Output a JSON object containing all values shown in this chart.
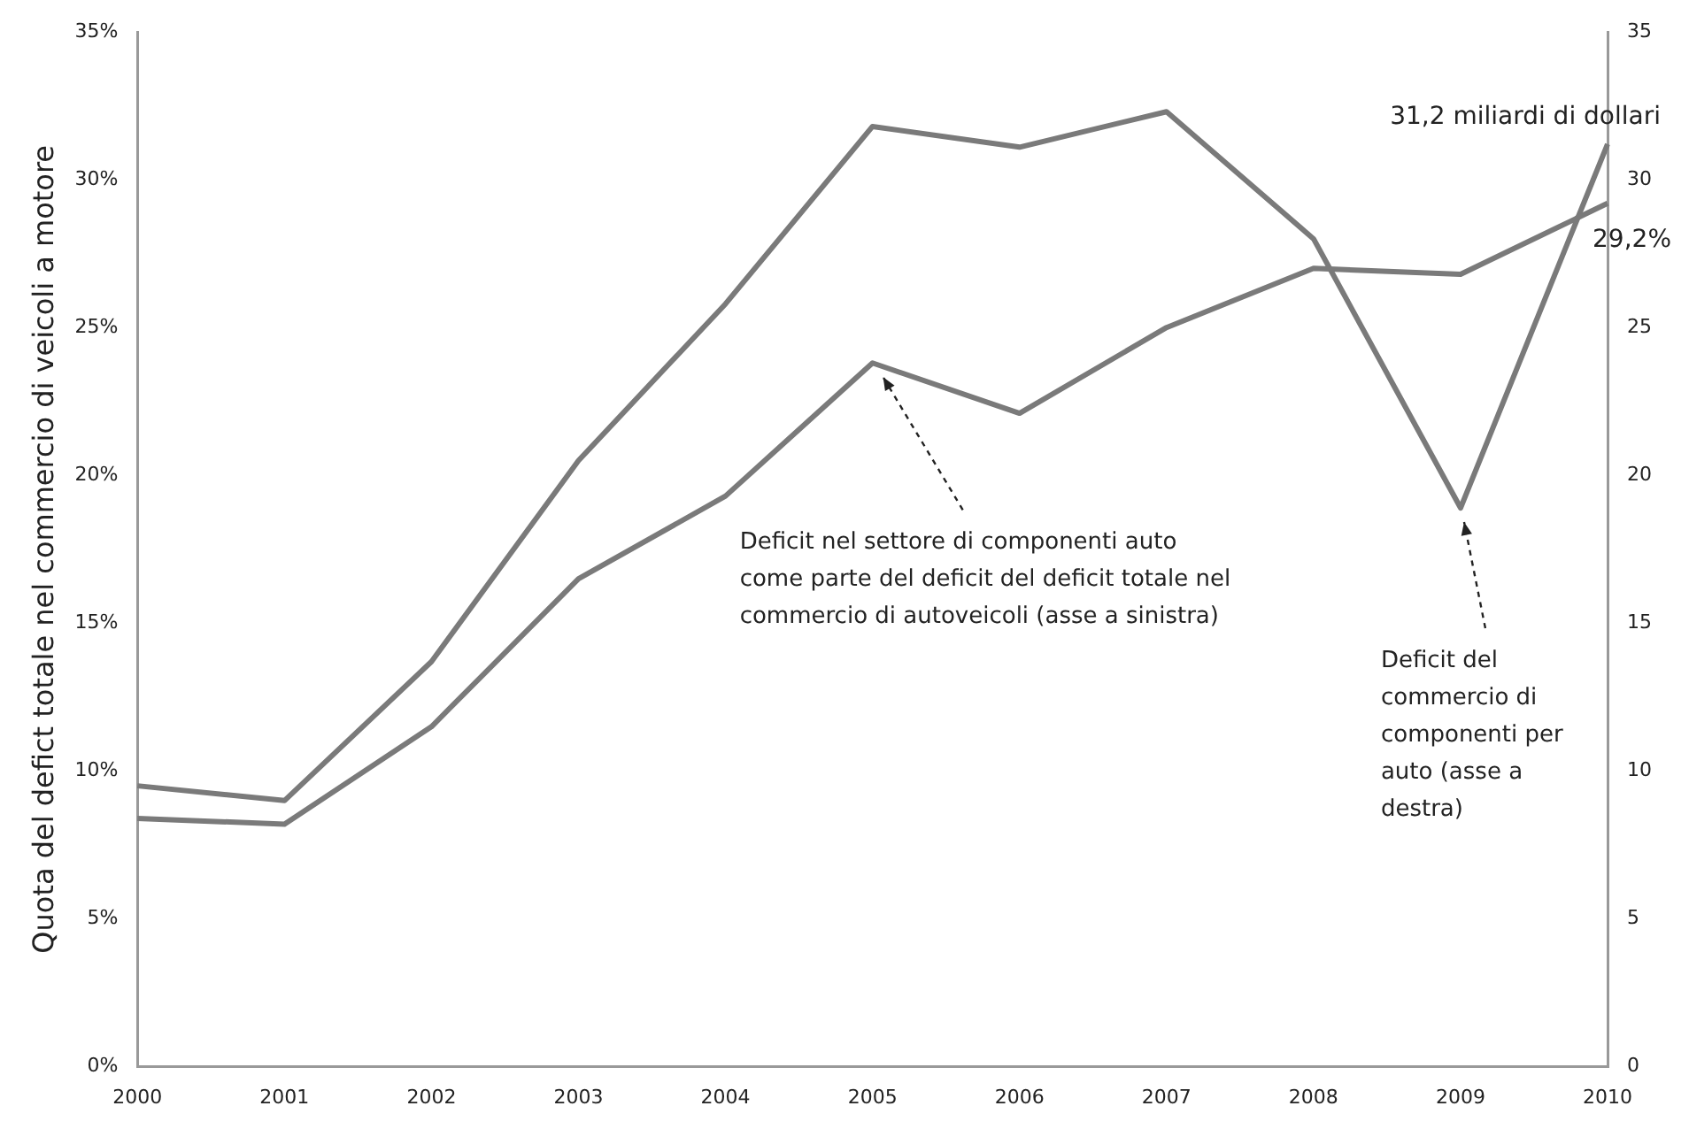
{
  "chart_data": {
    "type": "line",
    "ylabel": "Quota del defict totale nel commercio di veicoli a motore",
    "categories": [
      "2000",
      "2001",
      "2002",
      "2003",
      "2004",
      "2005",
      "2006",
      "2007",
      "2008",
      "2009",
      "2010"
    ],
    "series": [
      {
        "color": "#7a7a7a",
        "values": [
          8.4,
          8.2,
          11.5,
          16.5,
          19.3,
          23.8,
          22.1,
          25.0,
          27.0,
          26.8,
          29.2
        ],
        "value_labels": [
          null,
          null,
          null,
          null,
          null,
          null,
          null,
          null,
          null,
          null,
          "29,2%"
        ]
      },
      {
        "color": "#7a7a7a",
        "axis": "y2",
        "values": [
          9.5,
          9.0,
          13.7,
          20.5,
          25.8,
          31.8,
          31.1,
          32.3,
          28.0,
          18.9,
          31.2
        ],
        "value_labels": [
          null,
          null,
          null,
          null,
          null,
          null,
          null,
          null,
          null,
          null,
          "31,2 miliardi di dollari"
        ]
      }
    ],
    "ylim": [
      0,
      35
    ],
    "yticks": [
      {
        "value": 0,
        "label": "0%"
      },
      {
        "value": 5,
        "label": "5%"
      },
      {
        "value": 10,
        "label": "10%"
      },
      {
        "value": 15,
        "label": "15%"
      },
      {
        "value": 20,
        "label": "20%"
      },
      {
        "value": 25,
        "label": "25%"
      },
      {
        "value": 30,
        "label": "30%"
      },
      {
        "value": 35,
        "label": "35%"
      }
    ],
    "y2lim": [
      0,
      35
    ],
    "y2ticks": [
      0,
      5,
      10,
      15,
      20,
      25,
      30,
      35
    ],
    "grid": false,
    "legend": false,
    "line_style": "solid",
    "marker": "none",
    "annotations": [
      "Deficit nel settore di componenti auto come parte del deficit del deficit totale nel commercio di autoveicoli (asse a sinistra)",
      {
        "text": "Deficit del commercio di componenti per auto (asse a destra)",
        "x": "2009",
        "y": 18.9
      }
    ]
  }
}
